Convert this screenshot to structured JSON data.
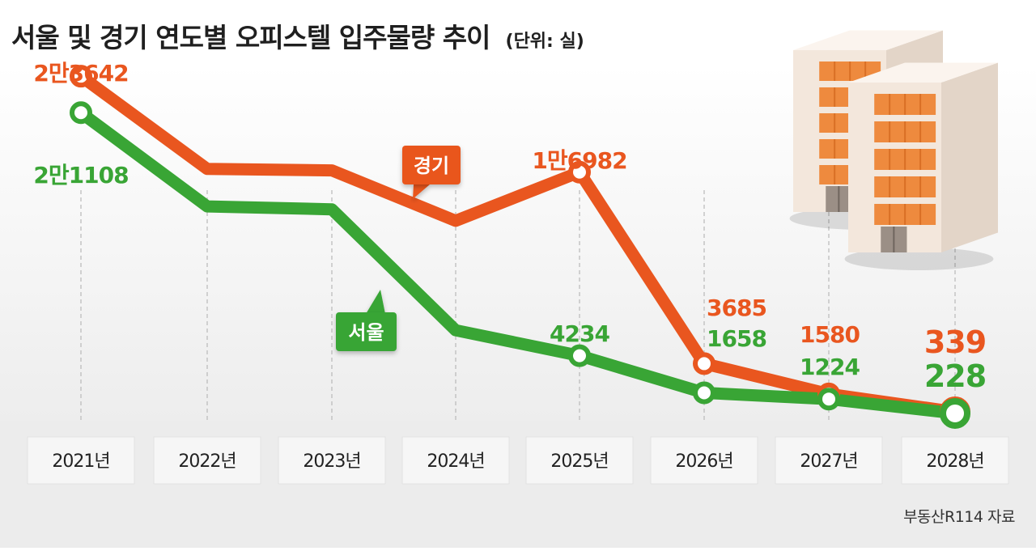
{
  "title": "서울 및 경기 연도별 오피스텔 입주물량 추이",
  "unit": "(단위: 실)",
  "source": "부동산R114 자료",
  "colors": {
    "seoul": "#39a535",
    "gyeonggi": "#e9561f",
    "axis_box": "#f6f6f6",
    "floor": "#ececec"
  },
  "icon": "office-building-illustration",
  "chart_data": {
    "type": "line",
    "title": "서울 및 경기 연도별 오피스텔 입주물량 추이",
    "x": [
      "2021년",
      "2022년",
      "2023년",
      "2024년",
      "2025년",
      "2026년",
      "2027년",
      "2028년"
    ],
    "ylim": [
      0,
      25000
    ],
    "grid": "vertical-dashed",
    "series": [
      {
        "name": "경기",
        "color": "#e9561f",
        "values": [
          23642,
          17200,
          17100,
          13600,
          16982,
          3685,
          1580,
          339
        ],
        "labels": [
          "2만3642",
          "",
          "",
          "",
          "1만6982",
          "3685",
          "1580",
          "339"
        ]
      },
      {
        "name": "서울",
        "color": "#39a535",
        "values": [
          21108,
          14600,
          14400,
          6000,
          4234,
          1658,
          1224,
          228
        ],
        "labels": [
          "2만1108",
          "",
          "",
          "",
          "4234",
          "1658",
          "1224",
          "228"
        ]
      }
    ]
  }
}
